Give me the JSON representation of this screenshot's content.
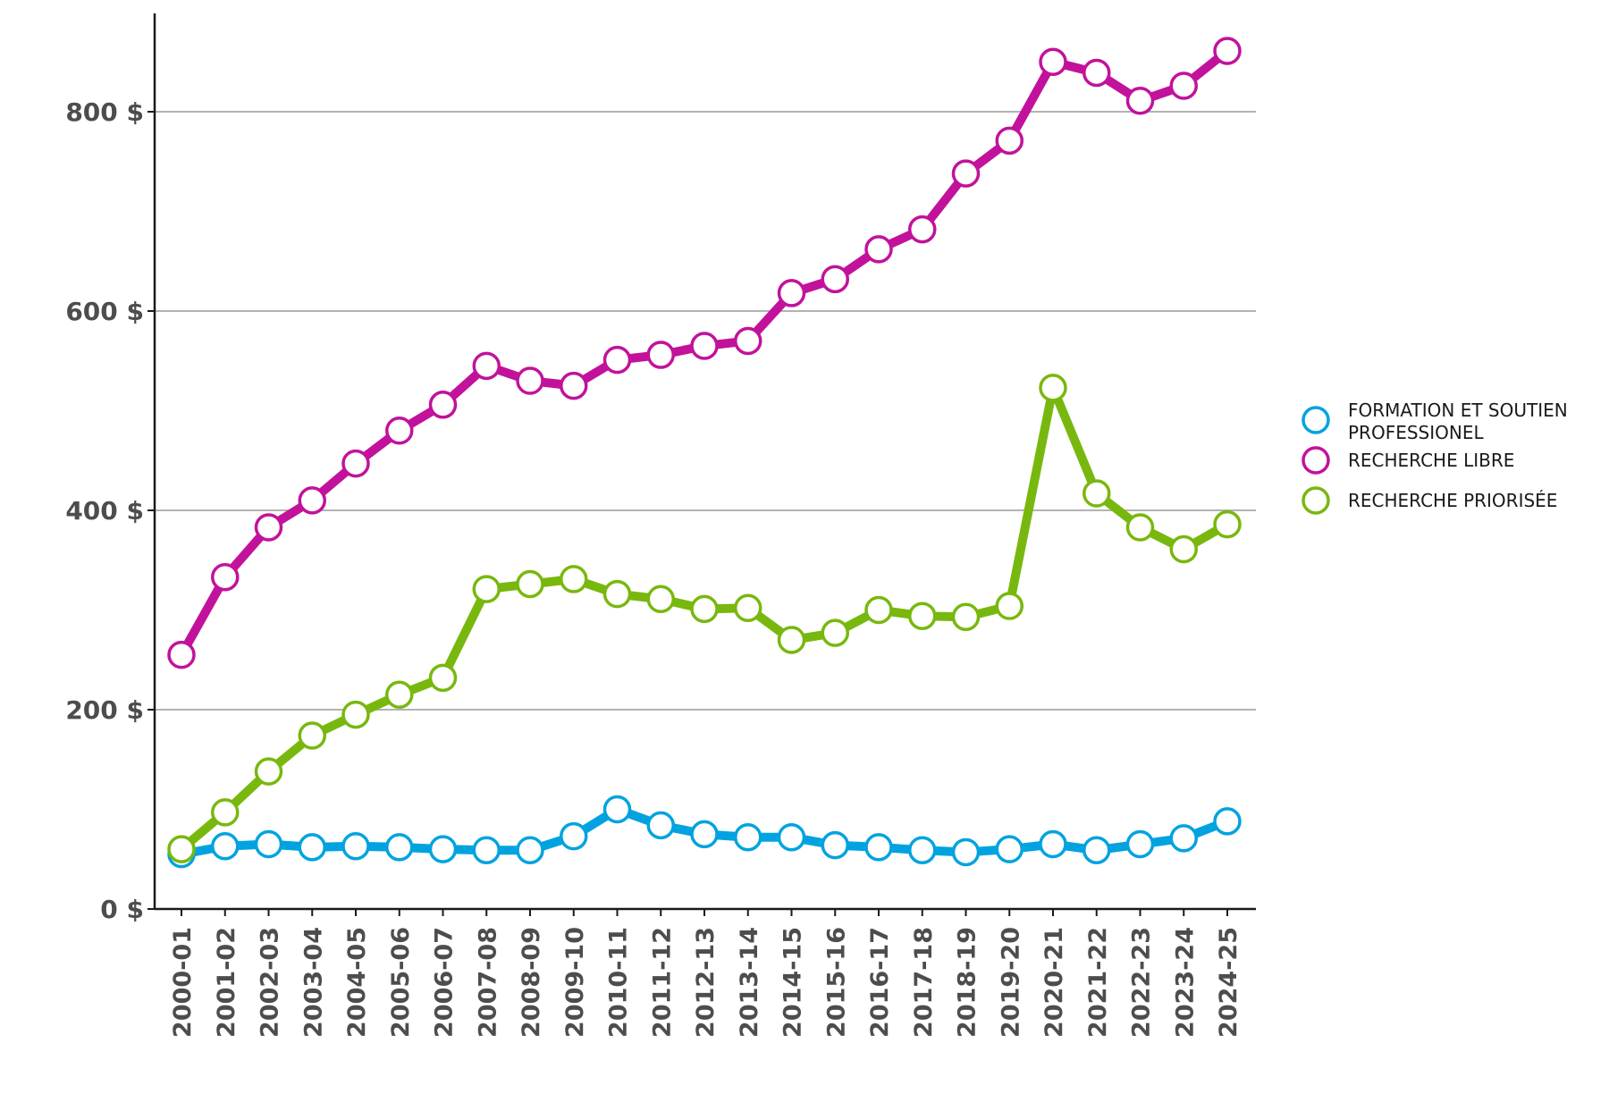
{
  "chart_data": {
    "type": "line",
    "title": "",
    "xlabel": "",
    "ylabel": "",
    "ylim": [
      0,
      900
    ],
    "yticks": [
      0,
      200,
      400,
      600,
      800
    ],
    "ytick_labels": [
      "0 $",
      "200 $",
      "400 $",
      "600 $",
      "800 $"
    ],
    "grid": "horizontal",
    "legend_position": "right",
    "categories": [
      "2000-01",
      "2001-02",
      "2002-03",
      "2003-04",
      "2004-05",
      "2005-06",
      "2006-07",
      "2007-08",
      "2008-09",
      "2009-10",
      "2010-11",
      "2011-12",
      "2012-13",
      "2013-14",
      "2014-15",
      "2015-16",
      "2016-17",
      "2017-18",
      "2018-19",
      "2019-20",
      "2020-21",
      "2021-22",
      "2022-23",
      "2023-24",
      "2024-25"
    ],
    "series": [
      {
        "name": "FORMATION ET SOUTIEN PROFESSIONEL",
        "legend_lines": [
          "FORMATION ET SOUTIEN",
          "PROFESSIONEL"
        ],
        "color": "#00a3e0",
        "values": [
          55,
          63,
          65,
          62,
          63,
          62,
          60,
          59,
          59,
          73,
          100,
          84,
          75,
          72,
          72,
          64,
          62,
          59,
          57,
          60,
          65,
          59,
          65,
          71,
          88
        ]
      },
      {
        "name": "RECHERCHE LIBRE",
        "legend_lines": [
          "RECHERCHE LIBRE"
        ],
        "color": "#c2129b",
        "values": [
          255,
          333,
          383,
          410,
          447,
          480,
          506,
          545,
          530,
          525,
          551,
          556,
          565,
          570,
          618,
          632,
          662,
          682,
          738,
          771,
          850,
          839,
          811,
          826,
          861
        ]
      },
      {
        "name": "RECHERCHE PRIORISÉE",
        "legend_lines": [
          "RECHERCHE PRIORISÉE"
        ],
        "color": "#78b80e",
        "values": [
          60,
          97,
          138,
          174,
          195,
          215,
          232,
          321,
          326,
          331,
          316,
          311,
          301,
          302,
          270,
          277,
          300,
          294,
          293,
          304,
          523,
          417,
          383,
          361,
          386
        ]
      }
    ]
  }
}
